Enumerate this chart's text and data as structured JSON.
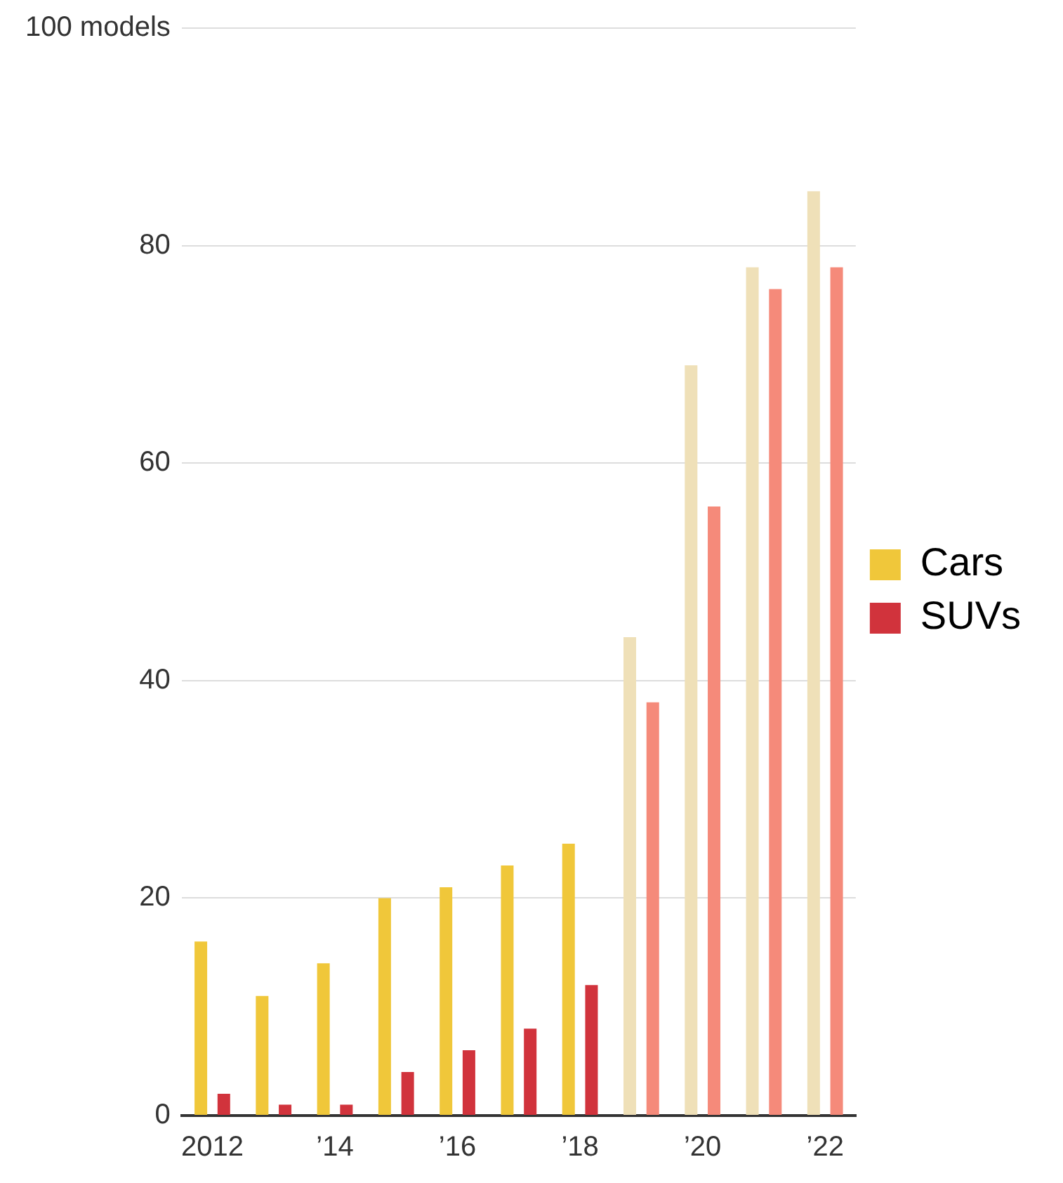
{
  "chart_data": {
    "type": "bar",
    "categories": [
      "2012",
      null,
      "’14",
      null,
      "’16",
      null,
      "’18",
      null,
      "’20",
      null,
      "’22"
    ],
    "series": [
      {
        "name": "Cars",
        "color": "#f0c73a",
        "colors": [
          "#f0c73a",
          "#f0c73a",
          "#f0c73a",
          "#f0c73a",
          "#f0c73a",
          "#f0c73a",
          "#f0c73a",
          "#efe0b8",
          "#efe0b8",
          "#efe0b8",
          "#efe0b8"
        ],
        "values": [
          16,
          11,
          14,
          20,
          21,
          23,
          25,
          44,
          69,
          78,
          85
        ]
      },
      {
        "name": "SUVs",
        "color": "#d1333c",
        "colors": [
          "#d1333c",
          "#d1333c",
          "#d1333c",
          "#d1333c",
          "#d1333c",
          "#d1333c",
          "#d1333c",
          "#f58a7a",
          "#f58a7a",
          "#f58a7a",
          "#f58a7a"
        ],
        "values": [
          2,
          1,
          1,
          4,
          6,
          8,
          12,
          38,
          56,
          76,
          78
        ]
      }
    ],
    "ylim": [
      0,
      100
    ],
    "yticks": [
      0,
      20,
      40,
      60,
      80,
      {
        "value": 100,
        "label": "100 models"
      }
    ],
    "grid": "y",
    "legend": "right"
  }
}
